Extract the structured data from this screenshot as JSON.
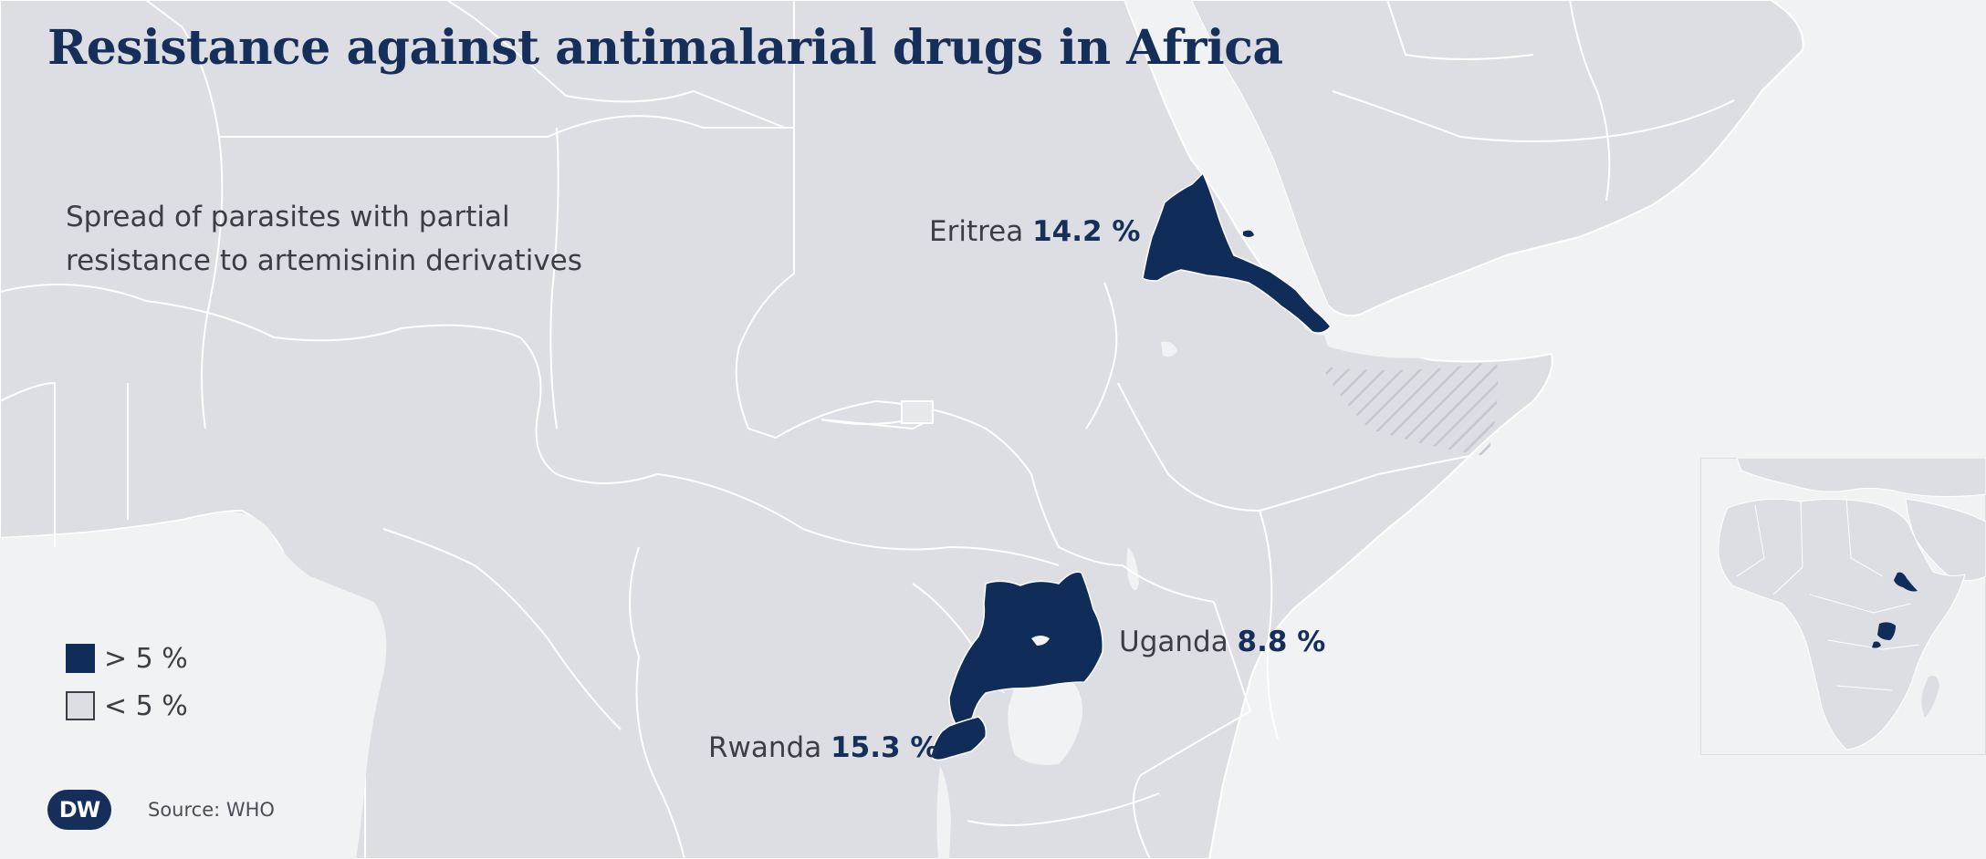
{
  "title": "Resistance against antimalarial drugs in Africa",
  "subtitle": "Spread of parasites with partial resistance to artemisinin derivatives",
  "countries": [
    {
      "name": "Eritrea",
      "value": "14.2 %",
      "category": "> 5 %"
    },
    {
      "name": "Uganda",
      "value": "8.8 %",
      "category": "> 5 %"
    },
    {
      "name": "Rwanda",
      "value": "15.3 %",
      "category": "> 5 %"
    }
  ],
  "legend": {
    "high": {
      "label": "> 5 %",
      "color": "#102c58"
    },
    "low": {
      "label": "< 5 %",
      "color": "#dcdee3"
    }
  },
  "source": "Source: WHO",
  "logo": "DW",
  "colors": {
    "land": "#dcdee3",
    "water": "#f1f2f4",
    "highlight": "#102c58",
    "title": "#152f5a",
    "borders": "#ffffff"
  }
}
